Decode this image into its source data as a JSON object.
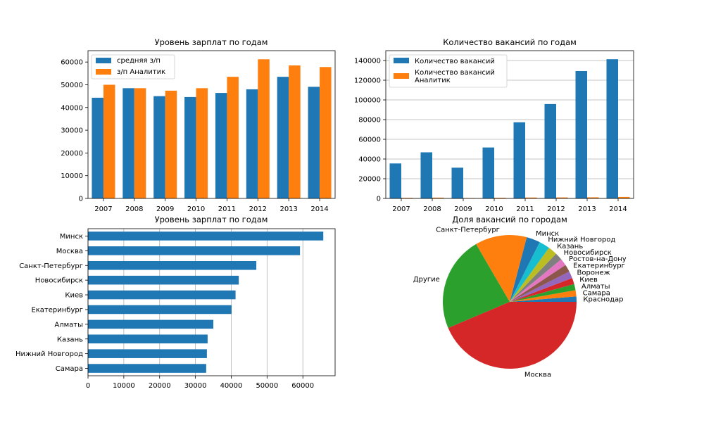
{
  "colors": {
    "blue": "#1f77b4",
    "orange": "#ff7f0e",
    "grid": "#b0b0b0"
  },
  "chart_data": [
    {
      "type": "bar",
      "title": "Уровень зарплат по годам",
      "categories": [
        "2007",
        "2008",
        "2009",
        "2010",
        "2011",
        "2012",
        "2013",
        "2014"
      ],
      "series": [
        {
          "name": "средняя з/п",
          "color": "#1f77b4",
          "values": [
            44300,
            48500,
            45000,
            44600,
            46400,
            48000,
            53500,
            49100
          ]
        },
        {
          "name": "з/п Аналитик",
          "color": "#ff7f0e",
          "values": [
            50000,
            48500,
            47400,
            48500,
            53500,
            61200,
            58500,
            57800
          ]
        }
      ],
      "ylim": [
        0,
        65000
      ],
      "yticks": [
        "0",
        "10000",
        "20000",
        "30000",
        "40000",
        "50000",
        "60000"
      ],
      "grid": false,
      "legend": "top-left"
    },
    {
      "type": "bar",
      "title": "Количество вакансий по годам",
      "categories": [
        "2007",
        "2008",
        "2009",
        "2010",
        "2011",
        "2012",
        "2013",
        "2014"
      ],
      "series": [
        {
          "name": "Количество вакансий",
          "color": "#1f77b4",
          "values": [
            35500,
            46800,
            31200,
            51700,
            77300,
            95800,
            129300,
            141300
          ]
        },
        {
          "name": "Количество вакансий Аналитик",
          "color": "#ff7f0e",
          "values": [
            600,
            800,
            400,
            700,
            900,
            1000,
            1100,
            1500
          ]
        }
      ],
      "ylim": [
        0,
        150000
      ],
      "yticks": [
        "0",
        "20000",
        "40000",
        "60000",
        "80000",
        "100000",
        "120000",
        "140000"
      ],
      "grid": "y",
      "legend": "top-left"
    },
    {
      "type": "barh",
      "title": "Уровень зарплат по годам",
      "categories": [
        "Минск",
        "Москва",
        "Санкт-Петербург",
        "Новосибирск",
        "Киев",
        "Екатеринбург",
        "Алматы",
        "Казань",
        "Нижний Новгород",
        "Самара"
      ],
      "values": [
        65700,
        59200,
        47000,
        42100,
        41200,
        40100,
        35000,
        33400,
        33200,
        33000
      ],
      "xlim": [
        0,
        69000
      ],
      "xticks": [
        "0",
        "10000",
        "20000",
        "30000",
        "40000",
        "50000",
        "60000"
      ],
      "grid": "x",
      "color": "#1f77b4"
    },
    {
      "type": "pie",
      "title": "Доля вакансий по городам",
      "labels": [
        "Краснодар",
        "Самара",
        "Алматы",
        "Киев",
        "Воронеж",
        "Екатеринбург",
        "Ростов-на-Дону",
        "Новосибирск",
        "Казань",
        "Нижний Новгород",
        "Минск",
        "Санкт-Петербург",
        "Другие",
        "Москва"
      ],
      "values": [
        1.3,
        1.5,
        1.5,
        1.5,
        1.7,
        1.8,
        1.7,
        1.8,
        2.2,
        2.6,
        3.3,
        12.5,
        23.0,
        43.6
      ],
      "colors": [
        "#1f77b4",
        "#ff7f0e",
        "#2ca02c",
        "#d62728",
        "#9467bd",
        "#8c564b",
        "#e377c2",
        "#7f7f7f",
        "#bcbd22",
        "#17becf",
        "#1f77b4",
        "#ff7f0e",
        "#2ca02c",
        "#d62728"
      ]
    }
  ]
}
